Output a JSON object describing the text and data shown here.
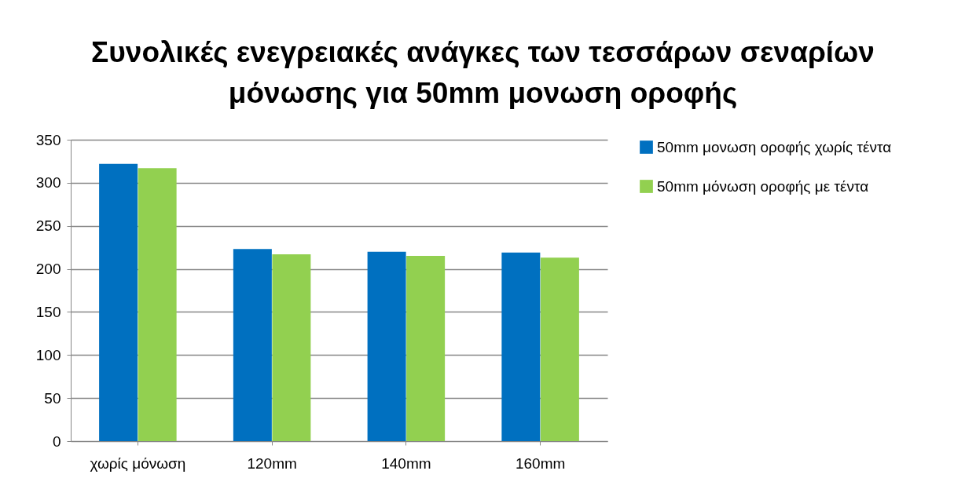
{
  "chart_data": {
    "type": "bar",
    "title": "Συνολικές ενεγρειακές ανάγκες των τεσσάρων σεναρίων μόνωσης για 50mm μονωση οροφής",
    "categories": [
      "χωρίς μόνωση",
      "120mm",
      "140mm",
      "160mm"
    ],
    "series": [
      {
        "name": "50mm μονωση οροφής χωρίς τέντα",
        "color": "#0070c0",
        "values": [
          322,
          223,
          220,
          219
        ]
      },
      {
        "name": "50mm μόνωση οροφής με τέντα",
        "color": "#92d050",
        "values": [
          317,
          217,
          215,
          213
        ]
      }
    ],
    "ylim": [
      0,
      350
    ],
    "yticks": [
      0,
      50,
      100,
      150,
      200,
      250,
      300,
      350
    ],
    "grid": "y",
    "legend": "right"
  }
}
